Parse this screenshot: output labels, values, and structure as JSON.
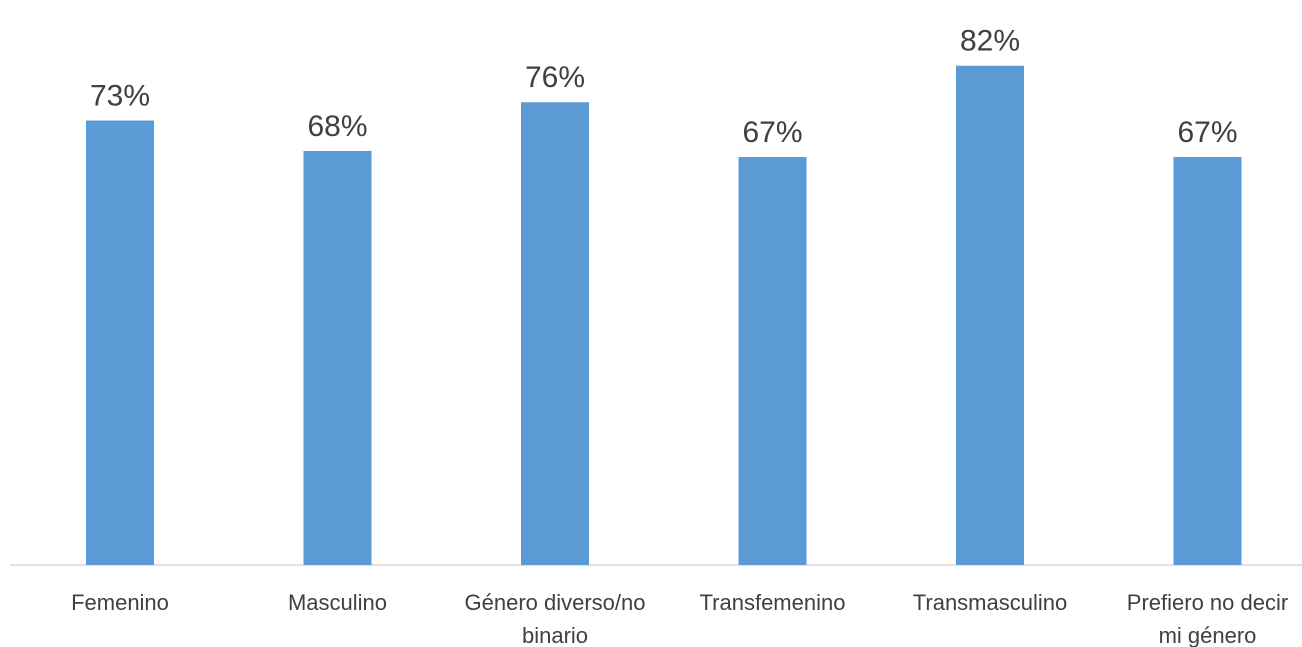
{
  "chart_data": {
    "type": "bar",
    "title": "",
    "xlabel": "",
    "ylabel": "",
    "categories": [
      [
        "Femenino"
      ],
      [
        "Masculino"
      ],
      [
        "Género diverso/no",
        "binario"
      ],
      [
        "Transfemenino"
      ],
      [
        "Transmasculino"
      ],
      [
        "Prefiero no decir",
        "mi género"
      ]
    ],
    "values": [
      73,
      68,
      76,
      67,
      82,
      67
    ],
    "data_labels": [
      "73%",
      "68%",
      "76%",
      "67%",
      "82%",
      "67%"
    ],
    "ylim": [
      0,
      90
    ],
    "grid": false,
    "legend": "none",
    "colors": {
      "bar": "#5b9bd5",
      "axis": "#d9d9d9",
      "text": "#404040"
    }
  }
}
